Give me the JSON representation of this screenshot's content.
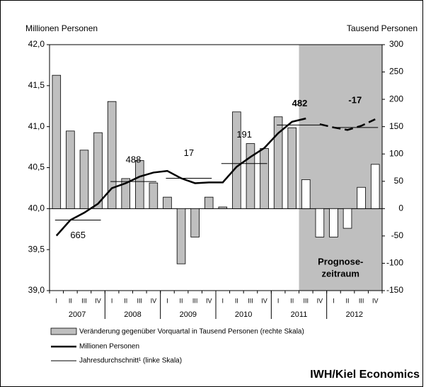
{
  "chart_data": {
    "type": "bar-line",
    "left_axis_title": "Millionen Personen",
    "right_axis_title": "Tausend Personen",
    "categories": [
      "I",
      "II",
      "III",
      "IV",
      "I",
      "II",
      "III",
      "IV",
      "I",
      "II",
      "III",
      "IV",
      "I",
      "II",
      "III",
      "IV",
      "I",
      "II",
      "III",
      "IV",
      "I",
      "II",
      "III",
      "IV"
    ],
    "years": [
      "2007",
      "2008",
      "2009",
      "2010",
      "2011",
      "2012"
    ],
    "series": [
      {
        "name": "Veränderung gegenüber Vorquartal in Tausend Personen (rechte Skala)",
        "color": "#bfbfbf",
        "forecast_color": "#ffffff",
        "axis": "y2",
        "values": [
          244,
          142,
          107,
          139,
          196,
          55,
          88,
          47,
          21,
          -101,
          -52,
          21,
          3,
          177,
          119,
          110,
          168,
          148,
          53,
          -52,
          -52,
          -36,
          39,
          81
        ]
      },
      {
        "name": "Millionen Personen",
        "color": "#000000",
        "axis": "y",
        "values": [
          39.67,
          39.86,
          39.95,
          40.06,
          40.25,
          40.31,
          40.39,
          40.44,
          40.46,
          40.37,
          40.31,
          40.32,
          40.32,
          40.51,
          40.63,
          40.74,
          40.92,
          41.06,
          41.1,
          41.03,
          40.99,
          40.96,
          41.01,
          41.09
        ]
      }
    ],
    "annual": {
      "name": "Jahresdurchschnitt¹ (linke Skala)",
      "color": "#000000",
      "values": [
        39.86,
        40.33,
        40.37,
        40.55,
        41.02,
        40.99
      ],
      "labels": [
        "665",
        "488",
        "17",
        "191",
        "482",
        "-17"
      ]
    },
    "forecast": {
      "start": 18,
      "color": "#bfbfbf",
      "label": [
        "Prognose-",
        "zeitraum"
      ]
    },
    "ylim": [
      39.0,
      42.0
    ],
    "yticks": [
      {
        "value": 39.0,
        "label": "39,0"
      },
      {
        "value": 39.5,
        "label": "39,5"
      },
      {
        "value": 40.0,
        "label": "40,0"
      },
      {
        "value": 40.5,
        "label": "40,5"
      },
      {
        "value": 41.0,
        "label": "41,0"
      },
      {
        "value": 41.5,
        "label": "41,5"
      },
      {
        "value": 42.0,
        "label": "42,0"
      }
    ],
    "y2lim": [
      -150,
      300
    ],
    "y2ticks": [
      -150,
      -100,
      -50,
      0,
      50,
      100,
      150,
      200,
      250,
      300
    ],
    "source": "IWH/Kiel Economics"
  }
}
